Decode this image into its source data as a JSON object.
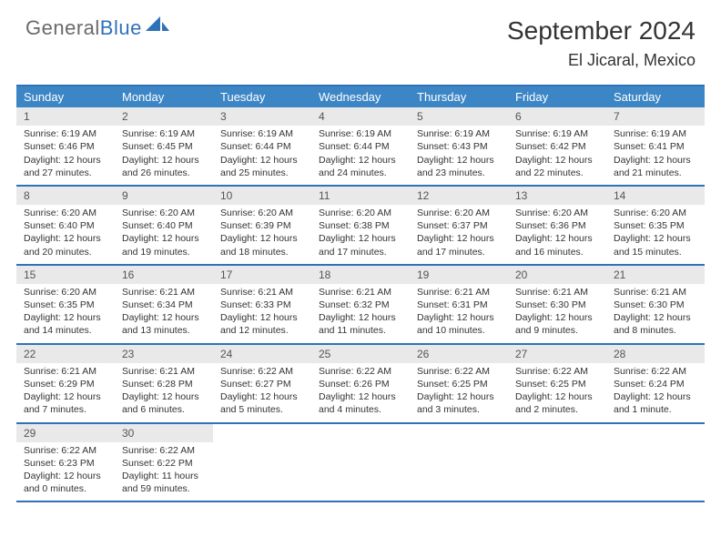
{
  "brand": {
    "general": "General",
    "blue": "Blue"
  },
  "title": "September 2024",
  "location": "El Jicaral, Mexico",
  "dows": [
    "Sunday",
    "Monday",
    "Tuesday",
    "Wednesday",
    "Thursday",
    "Friday",
    "Saturday"
  ],
  "colors": {
    "accent": "#2f72b8",
    "header_row": "#3d86c6",
    "daynum_bg": "#e9e9e9",
    "text": "#333333"
  },
  "weeks": [
    [
      {
        "n": "1",
        "sr": "Sunrise: 6:19 AM",
        "ss": "Sunset: 6:46 PM",
        "d1": "Daylight: 12 hours",
        "d2": "and 27 minutes."
      },
      {
        "n": "2",
        "sr": "Sunrise: 6:19 AM",
        "ss": "Sunset: 6:45 PM",
        "d1": "Daylight: 12 hours",
        "d2": "and 26 minutes."
      },
      {
        "n": "3",
        "sr": "Sunrise: 6:19 AM",
        "ss": "Sunset: 6:44 PM",
        "d1": "Daylight: 12 hours",
        "d2": "and 25 minutes."
      },
      {
        "n": "4",
        "sr": "Sunrise: 6:19 AM",
        "ss": "Sunset: 6:44 PM",
        "d1": "Daylight: 12 hours",
        "d2": "and 24 minutes."
      },
      {
        "n": "5",
        "sr": "Sunrise: 6:19 AM",
        "ss": "Sunset: 6:43 PM",
        "d1": "Daylight: 12 hours",
        "d2": "and 23 minutes."
      },
      {
        "n": "6",
        "sr": "Sunrise: 6:19 AM",
        "ss": "Sunset: 6:42 PM",
        "d1": "Daylight: 12 hours",
        "d2": "and 22 minutes."
      },
      {
        "n": "7",
        "sr": "Sunrise: 6:19 AM",
        "ss": "Sunset: 6:41 PM",
        "d1": "Daylight: 12 hours",
        "d2": "and 21 minutes."
      }
    ],
    [
      {
        "n": "8",
        "sr": "Sunrise: 6:20 AM",
        "ss": "Sunset: 6:40 PM",
        "d1": "Daylight: 12 hours",
        "d2": "and 20 minutes."
      },
      {
        "n": "9",
        "sr": "Sunrise: 6:20 AM",
        "ss": "Sunset: 6:40 PM",
        "d1": "Daylight: 12 hours",
        "d2": "and 19 minutes."
      },
      {
        "n": "10",
        "sr": "Sunrise: 6:20 AM",
        "ss": "Sunset: 6:39 PM",
        "d1": "Daylight: 12 hours",
        "d2": "and 18 minutes."
      },
      {
        "n": "11",
        "sr": "Sunrise: 6:20 AM",
        "ss": "Sunset: 6:38 PM",
        "d1": "Daylight: 12 hours",
        "d2": "and 17 minutes."
      },
      {
        "n": "12",
        "sr": "Sunrise: 6:20 AM",
        "ss": "Sunset: 6:37 PM",
        "d1": "Daylight: 12 hours",
        "d2": "and 17 minutes."
      },
      {
        "n": "13",
        "sr": "Sunrise: 6:20 AM",
        "ss": "Sunset: 6:36 PM",
        "d1": "Daylight: 12 hours",
        "d2": "and 16 minutes."
      },
      {
        "n": "14",
        "sr": "Sunrise: 6:20 AM",
        "ss": "Sunset: 6:35 PM",
        "d1": "Daylight: 12 hours",
        "d2": "and 15 minutes."
      }
    ],
    [
      {
        "n": "15",
        "sr": "Sunrise: 6:20 AM",
        "ss": "Sunset: 6:35 PM",
        "d1": "Daylight: 12 hours",
        "d2": "and 14 minutes."
      },
      {
        "n": "16",
        "sr": "Sunrise: 6:21 AM",
        "ss": "Sunset: 6:34 PM",
        "d1": "Daylight: 12 hours",
        "d2": "and 13 minutes."
      },
      {
        "n": "17",
        "sr": "Sunrise: 6:21 AM",
        "ss": "Sunset: 6:33 PM",
        "d1": "Daylight: 12 hours",
        "d2": "and 12 minutes."
      },
      {
        "n": "18",
        "sr": "Sunrise: 6:21 AM",
        "ss": "Sunset: 6:32 PM",
        "d1": "Daylight: 12 hours",
        "d2": "and 11 minutes."
      },
      {
        "n": "19",
        "sr": "Sunrise: 6:21 AM",
        "ss": "Sunset: 6:31 PM",
        "d1": "Daylight: 12 hours",
        "d2": "and 10 minutes."
      },
      {
        "n": "20",
        "sr": "Sunrise: 6:21 AM",
        "ss": "Sunset: 6:30 PM",
        "d1": "Daylight: 12 hours",
        "d2": "and 9 minutes."
      },
      {
        "n": "21",
        "sr": "Sunrise: 6:21 AM",
        "ss": "Sunset: 6:30 PM",
        "d1": "Daylight: 12 hours",
        "d2": "and 8 minutes."
      }
    ],
    [
      {
        "n": "22",
        "sr": "Sunrise: 6:21 AM",
        "ss": "Sunset: 6:29 PM",
        "d1": "Daylight: 12 hours",
        "d2": "and 7 minutes."
      },
      {
        "n": "23",
        "sr": "Sunrise: 6:21 AM",
        "ss": "Sunset: 6:28 PM",
        "d1": "Daylight: 12 hours",
        "d2": "and 6 minutes."
      },
      {
        "n": "24",
        "sr": "Sunrise: 6:22 AM",
        "ss": "Sunset: 6:27 PM",
        "d1": "Daylight: 12 hours",
        "d2": "and 5 minutes."
      },
      {
        "n": "25",
        "sr": "Sunrise: 6:22 AM",
        "ss": "Sunset: 6:26 PM",
        "d1": "Daylight: 12 hours",
        "d2": "and 4 minutes."
      },
      {
        "n": "26",
        "sr": "Sunrise: 6:22 AM",
        "ss": "Sunset: 6:25 PM",
        "d1": "Daylight: 12 hours",
        "d2": "and 3 minutes."
      },
      {
        "n": "27",
        "sr": "Sunrise: 6:22 AM",
        "ss": "Sunset: 6:25 PM",
        "d1": "Daylight: 12 hours",
        "d2": "and 2 minutes."
      },
      {
        "n": "28",
        "sr": "Sunrise: 6:22 AM",
        "ss": "Sunset: 6:24 PM",
        "d1": "Daylight: 12 hours",
        "d2": "and 1 minute."
      }
    ],
    [
      {
        "n": "29",
        "sr": "Sunrise: 6:22 AM",
        "ss": "Sunset: 6:23 PM",
        "d1": "Daylight: 12 hours",
        "d2": "and 0 minutes."
      },
      {
        "n": "30",
        "sr": "Sunrise: 6:22 AM",
        "ss": "Sunset: 6:22 PM",
        "d1": "Daylight: 11 hours",
        "d2": "and 59 minutes."
      },
      {
        "blank": true
      },
      {
        "blank": true
      },
      {
        "blank": true
      },
      {
        "blank": true
      },
      {
        "blank": true
      }
    ]
  ]
}
